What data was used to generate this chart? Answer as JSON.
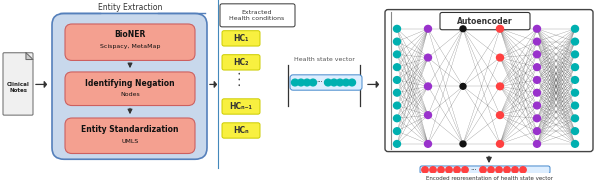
{
  "bg_color": "#ffffff",
  "entity_label": "Entity Extraction",
  "extracted_label": "Extracted\nHealth conditions",
  "autoencoder_label": "Autoencoder",
  "health_state_label": "Health state vector",
  "encoded_label": "Encoded representation of health state vector",
  "box1_line1": "BioNER",
  "box1_line2": "Scispacy, MetaMap",
  "box2_line1": "Identifying Negation",
  "box2_line2": "Nodes",
  "box3_line1": "Entity Standardization",
  "box3_line2": "UMLS",
  "clinical_label": "Clinical\nNotes",
  "hc_labels": [
    "HC₁",
    "HC₂",
    "HCₙ₋₁",
    "HCₙ"
  ],
  "teal_color": "#00b0b0",
  "purple_color": "#9932cc",
  "red_color": "#ff4040",
  "dark_color": "#333333",
  "entity_fill": "#c8d8ec",
  "entity_edge": "#5580bb",
  "pink_fill": "#f4a090",
  "pink_edge": "#cc6060",
  "yellow_fill": "#f8f040",
  "yellow_edge": "#cccc00",
  "hsv_fill": "#ddeeff",
  "hsv_edge": "#4488cc",
  "enc_fill": "#ddeeff",
  "enc_edge": "#4488cc"
}
